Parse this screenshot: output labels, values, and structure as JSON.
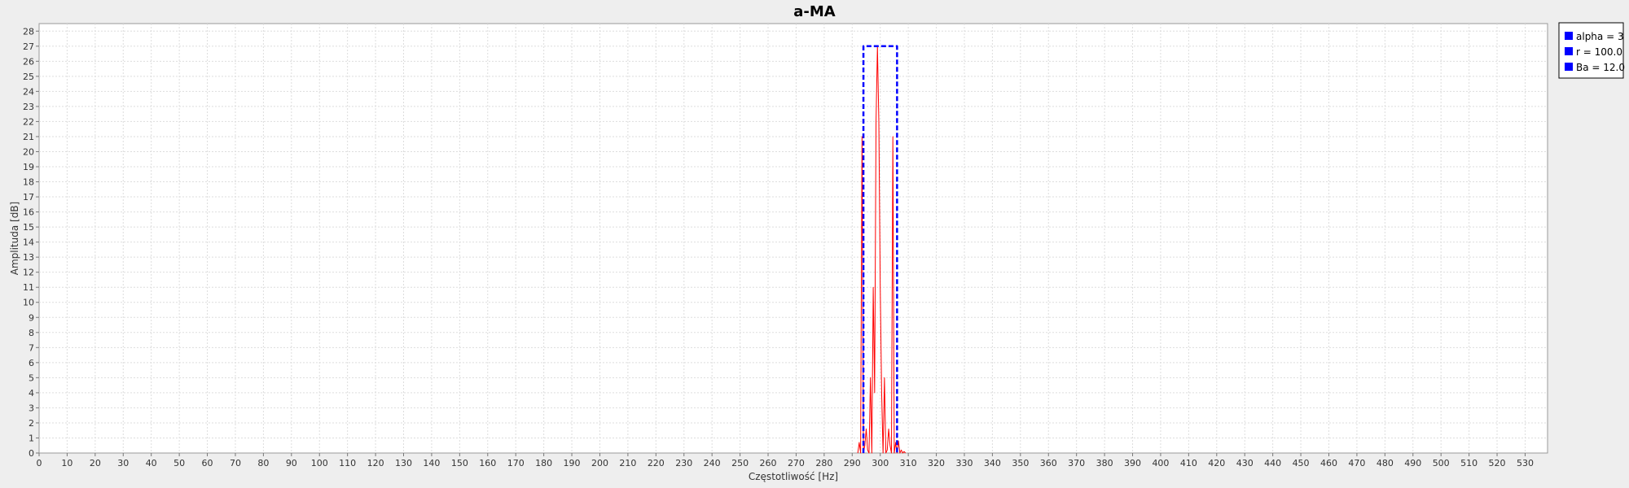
{
  "chart_data": {
    "type": "line",
    "title": "a-MA",
    "xlabel": "Częstotliwość [Hz]",
    "ylabel": "Amplituda [dB]",
    "xlim": [
      0,
      538
    ],
    "ylim": [
      0,
      28.5
    ],
    "x_ticks": [
      0,
      10,
      20,
      30,
      40,
      50,
      60,
      70,
      80,
      90,
      100,
      110,
      120,
      130,
      140,
      150,
      160,
      170,
      180,
      190,
      200,
      210,
      220,
      230,
      240,
      250,
      260,
      270,
      280,
      290,
      300,
      310,
      320,
      330,
      340,
      350,
      360,
      370,
      380,
      390,
      400,
      410,
      420,
      430,
      440,
      450,
      460,
      470,
      480,
      490,
      500,
      510,
      520,
      530
    ],
    "y_ticks": [
      0,
      1,
      2,
      3,
      4,
      5,
      6,
      7,
      8,
      9,
      10,
      11,
      12,
      13,
      14,
      15,
      16,
      17,
      18,
      19,
      20,
      21,
      22,
      23,
      24,
      25,
      26,
      27,
      28
    ],
    "grid": true,
    "legend_position": "right",
    "legend": [
      "alpha = 3",
      "r = 100.0",
      "Ba = 12.0"
    ],
    "legend_color": "#0000ff",
    "series": [
      {
        "color": "#ff0000",
        "style": "solid",
        "x": [
          292,
          292.5,
          293,
          293.5,
          294,
          294.5,
          295,
          295.5,
          296,
          296.5,
          297,
          297.5,
          298,
          298.5,
          299,
          299.5,
          300,
          300.5,
          301,
          301.5,
          302,
          302.5,
          303,
          303.5,
          304,
          304.5,
          305,
          305.5,
          306,
          306.5,
          307,
          307.5,
          308,
          308.5,
          309
        ],
        "y": [
          0,
          0.7,
          0,
          21,
          0,
          0.5,
          1.6,
          0.2,
          0,
          5,
          0,
          11,
          4,
          22,
          27,
          22,
          11,
          4,
          0,
          5,
          0,
          0.2,
          1.6,
          0.5,
          0,
          21,
          0,
          0.7,
          0,
          0.8,
          0,
          0.2,
          0,
          0.1,
          0
        ]
      },
      {
        "color": "#0000ff",
        "style": "dashed",
        "x": [
          294,
          294,
          300,
          306,
          306
        ],
        "y": [
          0,
          27,
          27,
          27,
          0
        ]
      }
    ]
  }
}
